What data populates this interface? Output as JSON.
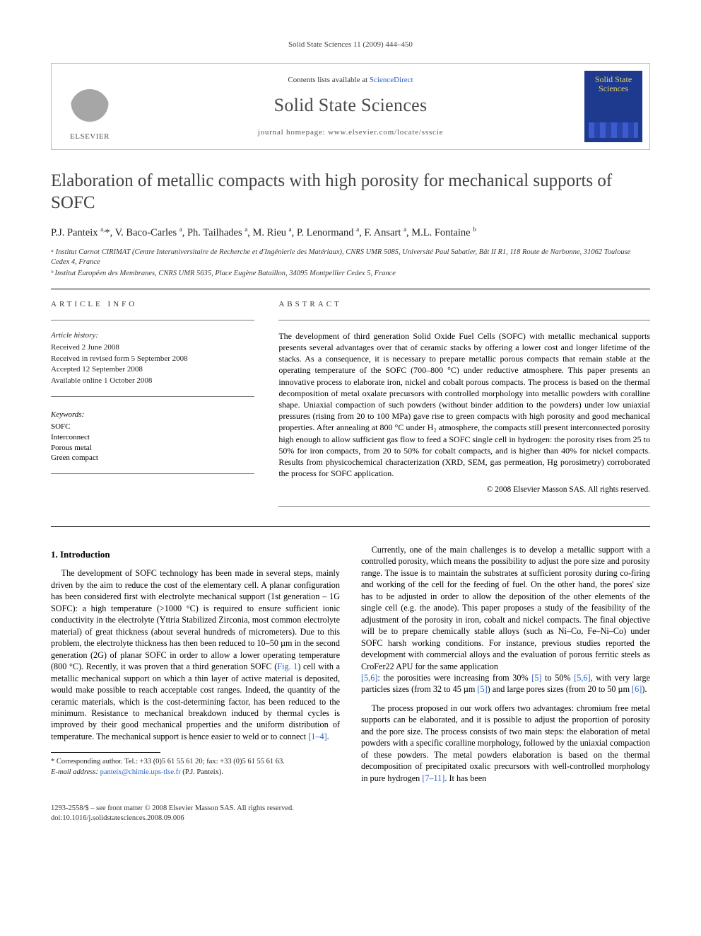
{
  "running_header": "Solid State Sciences 11 (2009) 444–450",
  "banner": {
    "contents_prefix": "Contents lists available at ",
    "contents_link": "ScienceDirect",
    "journal_title": "Solid State Sciences",
    "homepage_prefix": "journal homepage: ",
    "homepage_url": "www.elsevier.com/locate/ssscie",
    "publisher_name": "ELSEVIER",
    "cover_title": "Solid State Sciences"
  },
  "article": {
    "title": "Elaboration of metallic compacts with high porosity for mechanical supports of SOFC",
    "authors_html": "P.J. Panteix <sup>a,</sup>*, V. Baco-Carles <sup>a</sup>, Ph. Tailhades <sup>a</sup>, M. Rieu <sup>a</sup>, P. Lenormand <sup>a</sup>, F. Ansart <sup>a</sup>, M.L. Fontaine <sup>b</sup>",
    "affiliations": [
      "ᵃ Institut Carnot CIRIMAT (Centre Interuniversitaire de Recherche et d'Ingénierie des Matériaux), CNRS UMR 5085, Université Paul Sabatier, Bât II R1, 118 Route de Narbonne, 31062 Toulouse Cedex 4, France",
      "ᵇ Institut Européen des Membranes, CNRS UMR 5635, Place Eugène Bataillon, 34095 Montpellier Cedex 5, France"
    ]
  },
  "info": {
    "label": "ARTICLE INFO",
    "history_head": "Article history:",
    "history": [
      "Received 2 June 2008",
      "Received in revised form 5 September 2008",
      "Accepted 12 September 2008",
      "Available online 1 October 2008"
    ],
    "keywords_head": "Keywords:",
    "keywords": [
      "SOFC",
      "Interconnect",
      "Porous metal",
      "Green compact"
    ]
  },
  "abstract": {
    "label": "ABSTRACT",
    "text": "The development of third generation Solid Oxide Fuel Cells (SOFC) with metallic mechanical supports presents several advantages over that of ceramic stacks by offering a lower cost and longer lifetime of the stacks. As a consequence, it is necessary to prepare metallic porous compacts that remain stable at the operating temperature of the SOFC (700–800 °C) under reductive atmosphere. This paper presents an innovative process to elaborate iron, nickel and cobalt porous compacts. The process is based on the thermal decomposition of metal oxalate precursors with controlled morphology into metallic powders with coralline shape. Uniaxial compaction of such powders (without binder addition to the powders) under low uniaxial pressures (rising from 20 to 100 MPa) gave rise to green compacts with high porosity and good mechanical properties. After annealing at 800 °C under H₂ atmosphere, the compacts still present interconnected porosity high enough to allow sufficient gas flow to feed a SOFC single cell in hydrogen: the porosity rises from 25 to 50% for iron compacts, from 20 to 50% for cobalt compacts, and is higher than 40% for nickel compacts. Results from physicochemical characterization (XRD, SEM, gas permeation, Hg porosimetry) corroborated the process for SOFC application.",
    "copyright": "© 2008 Elsevier Masson SAS. All rights reserved."
  },
  "body": {
    "sec1_title": "1. Introduction",
    "p1a": "The development of SOFC technology has been made in several steps, mainly driven by the aim to reduce the cost of the elementary cell. A planar configuration has been considered first with electrolyte mechanical support (1st generation – 1G SOFC): a high temperature (>1000 °C) is required to ensure sufficient ionic conductivity in the electrolyte (Yttria Stabilized Zirconia, most common electrolyte material) of great thickness (about several hundreds of micrometers). Due to this problem, the electrolyte thickness has then been reduced to 10–50 µm in the second generation (2G) of planar SOFC in order to allow a lower operating temperature (800 °C). Recently, it was proven that a third generation SOFC (",
    "fig1_ref": "Fig. 1",
    "p1b": ") cell with a metallic mechanical support on which a thin layer of active material is deposited, would make possible to reach acceptable cost ranges. Indeed, the quantity of the ceramic materials, which is the cost-determining factor, has been reduced to the minimum. Resistance to mechanical breakdown induced by thermal cycles is improved by their good mechanical properties and the uniform distribution of temperature. The mechanical support is hence easier to weld or to connect ",
    "ref_1_4": "[1–4]",
    "p1c": ".",
    "p2a": "Currently, one of the main challenges is to develop a metallic support with a controlled porosity, which means the possibility to adjust the pore size and porosity range. The issue is to maintain the substrates at sufficient porosity during co-firing and working of the cell for the feeding of fuel. On the other hand, the pores' size has to be adjusted in order to allow the deposition of the other elements of the single cell (e.g. the anode). This paper proposes a study of the feasibility of the adjustment of the porosity in iron, cobalt and nickel compacts. The final objective will be to prepare chemically stable alloys (such as Ni–Co, Fe–Ni–Co) under SOFC harsh working conditions. For instance, previous studies reported the development with commercial alloys and the evaluation of porous ferritic steels as CroFer22 APU for the same application ",
    "ref_5_6a": "[5,6]",
    "p2b": ": the porosities were increasing from 30% ",
    "ref_5": "[5]",
    "p2c": " to 50% ",
    "ref_5_6b": "[5,6]",
    "p2d": ", with very large particles sizes (from 32 to 45 µm ",
    "ref_5b": "[5]",
    "p2e": ") and large pores sizes (from 20 to 50 µm ",
    "ref_6": "[6]",
    "p2f": ").",
    "p3a": "The process proposed in our work offers two advantages: chromium free metal supports can be elaborated, and it is possible to adjust the proportion of porosity and the pore size. The process consists of two main steps: the elaboration of metal powders with a specific coralline morphology, followed by the uniaxial compaction of these powders. The metal powders elaboration is based on the thermal decomposition of precipitated oxalic precursors with well-controlled morphology in pure hydrogen ",
    "ref_7_11": "[7–11]",
    "p3b": ". It has been"
  },
  "footnote": {
    "corr": "* Corresponding author. Tel.: +33 (0)5 61 55 61 20; fax: +33 (0)5 61 55 61 63.",
    "email_label": "E-mail address:",
    "email": "panteix@chimie.ups-tlse.fr",
    "email_tail": " (P.J. Panteix)."
  },
  "footer": {
    "issn_line": "1293-2558/$ – see front matter © 2008 Elsevier Masson SAS. All rights reserved.",
    "doi_line": "doi:10.1016/j.solidstatesciences.2008.09.006"
  },
  "colors": {
    "link": "#2a62c9",
    "rule": "#000000",
    "banner_border": "#bdbdbd",
    "cover_bg": "#1e3a8f",
    "cover_text": "#e6d26b"
  }
}
